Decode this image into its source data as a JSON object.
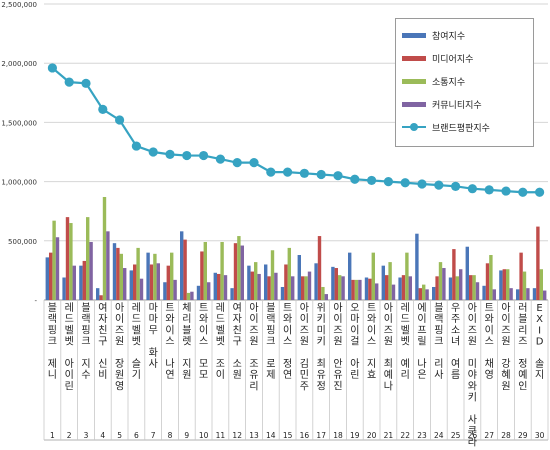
{
  "chart_data": {
    "type": "bar",
    "categories": [
      "1",
      "2",
      "3",
      "4",
      "5",
      "6",
      "7",
      "8",
      "9",
      "10",
      "11",
      "12",
      "13",
      "14",
      "15",
      "16",
      "17",
      "18",
      "19",
      "20",
      "21",
      "22",
      "23",
      "24",
      "25",
      "26",
      "27",
      "28",
      "29",
      "30"
    ],
    "names": [
      "블랙핑크 제니",
      "레드벨벳 아이린",
      "블랙핑크 지수",
      "여자친구 신비",
      "아이즈원 장원영",
      "레드벨벳 슬기",
      "마마무 화사",
      "트와이스 나연",
      "체리블렛 지원",
      "트와이스 모모",
      "레드벨벳 조이",
      "여자친구 소원",
      "아이즈원 조유리",
      "블랙핑크 로제",
      "트와이스 정연",
      "아이즈원 김민주",
      "위키미키 최유정",
      "아이즈원 안유진",
      "오마이걸 아린",
      "트와이스 지효",
      "아이즈원 최예나",
      "레드벨벳 예리",
      "에이프릴 나은",
      "블랙핑크 리사",
      "우주소녀 여름",
      "아이즈원 미야와키 사쿠라",
      "트와이스 채영",
      "아이즈원 강혜원",
      "러블리즈 정예인",
      "EXID 솔지"
    ],
    "ylim": [
      0,
      2500000
    ],
    "yticks": [
      "-",
      "500,000",
      "1,000,000",
      "1,500,000",
      "2,000,000",
      "2,500,000"
    ],
    "legend_position": "top-right",
    "series": [
      {
        "name": "참여지수",
        "color": "#4a76b8",
        "values": [
          360000,
          190000,
          290000,
          100000,
          480000,
          250000,
          400000,
          150000,
          580000,
          120000,
          230000,
          100000,
          290000,
          300000,
          110000,
          380000,
          310000,
          280000,
          400000,
          190000,
          290000,
          190000,
          560000,
          110000,
          190000,
          450000,
          120000,
          250000,
          90000,
          100000
        ]
      },
      {
        "name": "미디어지수",
        "color": "#c04c4a",
        "values": [
          400000,
          700000,
          330000,
          40000,
          440000,
          300000,
          300000,
          290000,
          510000,
          410000,
          220000,
          480000,
          240000,
          200000,
          300000,
          200000,
          540000,
          270000,
          170000,
          180000,
          210000,
          210000,
          100000,
          200000,
          430000,
          210000,
          310000,
          260000,
          400000,
          620000
        ]
      },
      {
        "name": "소통지수",
        "color": "#9bbb59",
        "values": [
          670000,
          650000,
          700000,
          870000,
          390000,
          440000,
          390000,
          400000,
          60000,
          490000,
          490000,
          540000,
          320000,
          420000,
          440000,
          200000,
          110000,
          210000,
          170000,
          400000,
          320000,
          400000,
          130000,
          320000,
          200000,
          210000,
          380000,
          260000,
          240000,
          260000
        ]
      },
      {
        "name": "커뮤니티지수",
        "color": "#8064a2",
        "values": [
          530000,
          290000,
          490000,
          580000,
          270000,
          180000,
          310000,
          170000,
          70000,
          150000,
          210000,
          460000,
          220000,
          230000,
          200000,
          240000,
          50000,
          200000,
          170000,
          140000,
          130000,
          200000,
          90000,
          270000,
          260000,
          150000,
          90000,
          100000,
          100000,
          80000
        ]
      },
      {
        "name": "브랜드평판지수",
        "color": "#36a3c2",
        "values": [
          1960000,
          1840000,
          1830000,
          1610000,
          1520000,
          1300000,
          1250000,
          1230000,
          1220000,
          1220000,
          1190000,
          1160000,
          1160000,
          1080000,
          1080000,
          1070000,
          1060000,
          1050000,
          1020000,
          1010000,
          1000000,
          990000,
          980000,
          970000,
          960000,
          940000,
          930000,
          920000,
          910000,
          910000
        ]
      }
    ]
  }
}
